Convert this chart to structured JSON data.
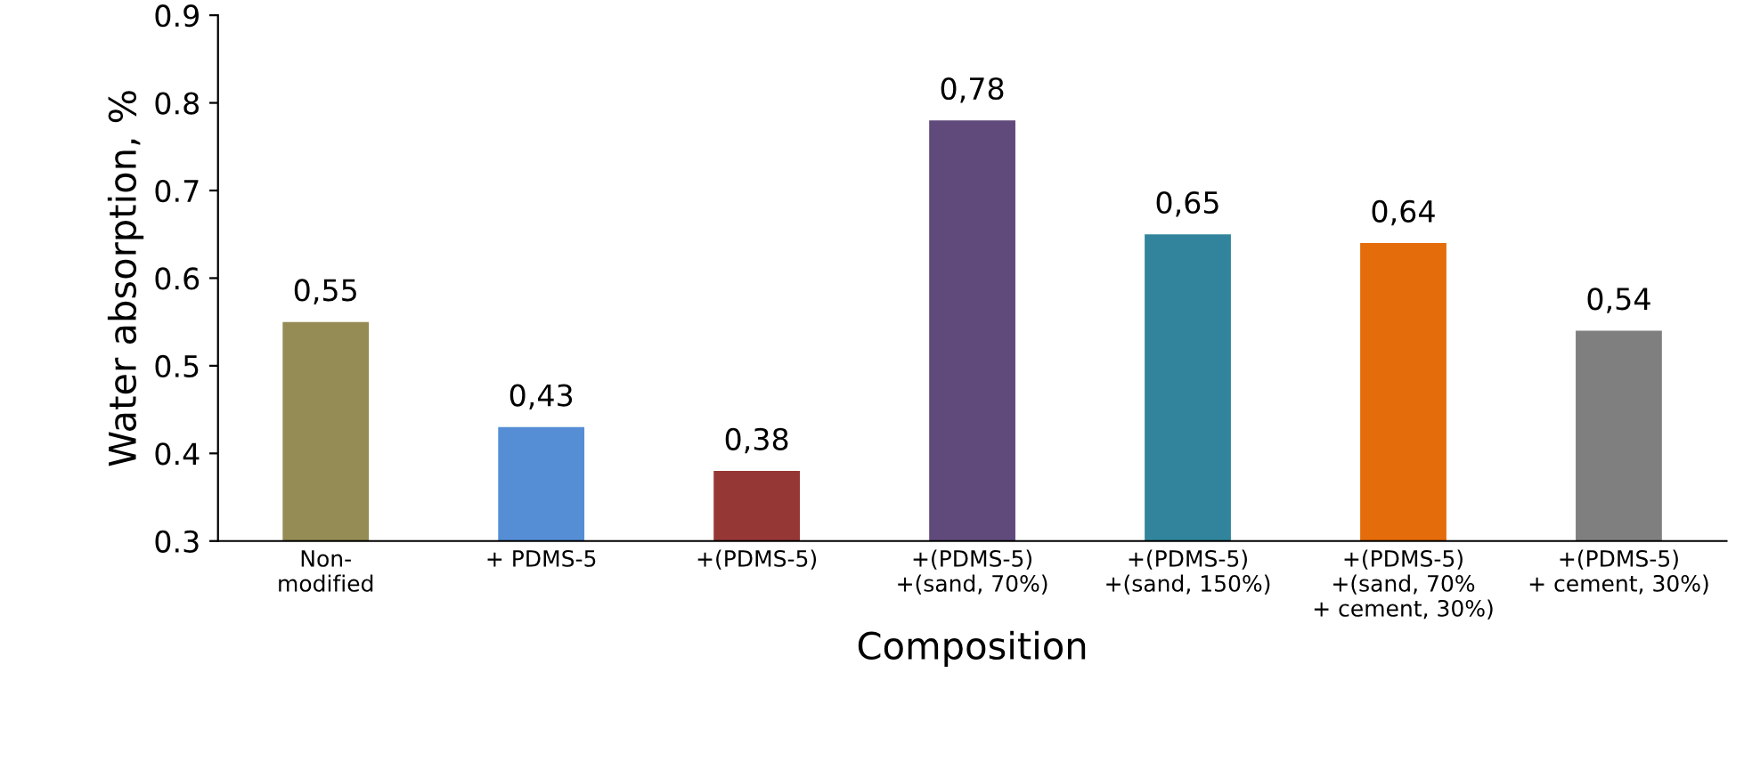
{
  "chart_data": {
    "type": "bar",
    "xlabel": "Composition",
    "ylabel": "Water absorption, %",
    "categories": [
      "Non-\nmodified",
      "+ PDMS-5",
      "+(PDMS-5)",
      "+(PDMS-5)\n+(sand, 70%)",
      "+(PDMS-5)\n+(sand, 150%)",
      "+(PDMS-5)\n+(sand, 70%\n+ cement, 30%)",
      "+(PDMS-5)\n+ cement, 30%)"
    ],
    "values": [
      0.55,
      0.43,
      0.38,
      0.78,
      0.65,
      0.64,
      0.54
    ],
    "value_labels": [
      "0,55",
      "0,43",
      "0,38",
      "0,78",
      "0,65",
      "0,64",
      "0,54"
    ],
    "colors": [
      "#958b55",
      "#558ed5",
      "#953735",
      "#604a7b",
      "#31849b",
      "#e46c0a",
      "#7f7f7f"
    ],
    "ylim": [
      0.3,
      0.9
    ],
    "yticks": [
      0.3,
      0.4,
      0.5,
      0.6,
      0.7,
      0.8,
      0.9
    ],
    "grid": false,
    "legend": false
  }
}
